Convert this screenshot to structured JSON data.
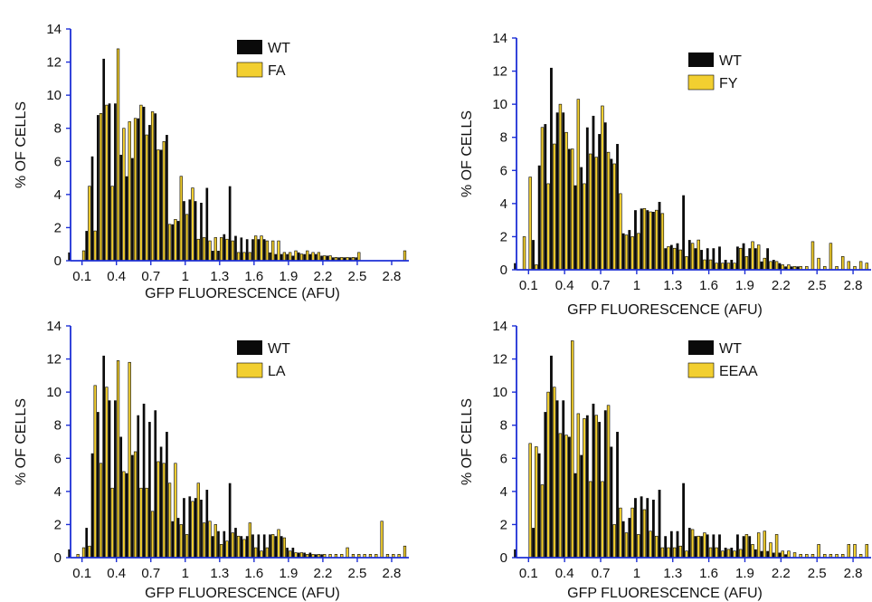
{
  "colors": {
    "wt": "#0a0a0a",
    "mutant": "#f2cf30",
    "axis": "#1d2fd6"
  },
  "chart_data": [
    {
      "type": "bar",
      "xlabel": "GFP FLUORESCENCE (AFU)",
      "ylabel": "% OF CELLS",
      "xlim": [
        0,
        2.95
      ],
      "ylim": [
        0,
        14
      ],
      "xticks": [
        "0.1",
        "0.4",
        "0.7",
        "1",
        "1.3",
        "1.6",
        "1.9",
        "2.2",
        "2.5",
        "2.8"
      ],
      "xtick_values": [
        0.1,
        0.4,
        0.7,
        1.0,
        1.3,
        1.6,
        1.9,
        2.2,
        2.5,
        2.8
      ],
      "yticks": [
        0,
        2,
        4,
        6,
        8,
        10,
        12,
        14
      ],
      "bin_width": 0.05,
      "legend_position": "top-right",
      "series": [
        {
          "name": "WT",
          "color": "#0a0a0a",
          "x": [
            0.0,
            0.15,
            0.2,
            0.25,
            0.3,
            0.35,
            0.4,
            0.45,
            0.5,
            0.55,
            0.6,
            0.65,
            0.7,
            0.75,
            0.8,
            0.85,
            0.9,
            0.95,
            1.0,
            1.05,
            1.1,
            1.15,
            1.2,
            1.25,
            1.3,
            1.35,
            1.4,
            1.45,
            1.5,
            1.55,
            1.6,
            1.65,
            1.7,
            1.75,
            1.8,
            1.85,
            1.9,
            1.95,
            2.0,
            2.05,
            2.1,
            2.15,
            2.2,
            2.25,
            2.3,
            2.35,
            2.4,
            2.45,
            2.5
          ],
          "values": [
            0.5,
            1.8,
            6.3,
            8.8,
            12.2,
            9.5,
            9.5,
            6.4,
            5.1,
            6.2,
            8.6,
            9.3,
            8.2,
            8.9,
            6.7,
            7.6,
            2.2,
            2.4,
            3.6,
            3.7,
            3.6,
            3.5,
            4.4,
            0.6,
            0.6,
            1.6,
            4.5,
            1.5,
            1.4,
            1.3,
            1.3,
            1.3,
            1.3,
            0.5,
            0.4,
            0.4,
            0.4,
            0.3,
            0.5,
            0.4,
            0.4,
            0.4,
            0.3,
            0.3,
            0.2,
            0.2,
            0.2,
            0.2,
            0.2
          ]
        },
        {
          "name": "FA",
          "color": "#f2cf30",
          "x": [
            0.1,
            0.15,
            0.2,
            0.25,
            0.3,
            0.35,
            0.4,
            0.45,
            0.5,
            0.55,
            0.6,
            0.65,
            0.7,
            0.75,
            0.8,
            0.85,
            0.9,
            0.95,
            1.0,
            1.05,
            1.1,
            1.15,
            1.2,
            1.25,
            1.3,
            1.35,
            1.4,
            1.45,
            1.5,
            1.55,
            1.6,
            1.65,
            1.7,
            1.75,
            1.8,
            1.85,
            1.9,
            1.95,
            2.0,
            2.05,
            2.1,
            2.15,
            2.2,
            2.25,
            2.3,
            2.35,
            2.4,
            2.45,
            2.5,
            2.9
          ],
          "values": [
            0.6,
            4.5,
            1.8,
            8.9,
            9.4,
            4.5,
            12.8,
            8.0,
            8.4,
            8.6,
            9.4,
            7.6,
            9.0,
            6.7,
            7.2,
            2.2,
            2.5,
            5.1,
            2.8,
            4.4,
            1.3,
            1.4,
            1.2,
            1.4,
            1.4,
            1.3,
            1.2,
            0.5,
            0.5,
            0.5,
            1.5,
            1.5,
            1.2,
            1.2,
            1.2,
            0.5,
            0.5,
            0.6,
            0.4,
            0.6,
            0.5,
            0.5,
            0.3,
            0.3,
            0.2,
            0.2,
            0.2,
            0.2,
            0.5,
            0.6
          ]
        }
      ]
    },
    {
      "type": "bar",
      "xlabel": "GFP FLUORESCENCE (AFU)",
      "ylabel": "% OF CELLS",
      "xlim": [
        0,
        2.95
      ],
      "ylim": [
        0,
        14
      ],
      "xticks": [
        "0.1",
        "0.4",
        "0.7",
        "1",
        "1.3",
        "1.6",
        "1.9",
        "2.2",
        "2.5",
        "2.8"
      ],
      "xtick_values": [
        0.1,
        0.4,
        0.7,
        1.0,
        1.3,
        1.6,
        1.9,
        2.2,
        2.5,
        2.8
      ],
      "yticks": [
        0,
        2,
        4,
        6,
        8,
        10,
        12,
        14
      ],
      "bin_width": 0.05,
      "legend_position": "top-right",
      "series": [
        {
          "name": "WT",
          "color": "#0a0a0a",
          "x": [
            0.0,
            0.15,
            0.2,
            0.25,
            0.3,
            0.35,
            0.4,
            0.45,
            0.5,
            0.55,
            0.6,
            0.65,
            0.7,
            0.75,
            0.8,
            0.85,
            0.9,
            0.95,
            1.0,
            1.05,
            1.1,
            1.15,
            1.2,
            1.25,
            1.3,
            1.35,
            1.4,
            1.45,
            1.5,
            1.55,
            1.6,
            1.65,
            1.7,
            1.75,
            1.8,
            1.85,
            1.9,
            1.95,
            2.0,
            2.05,
            2.1,
            2.15,
            2.2,
            2.25,
            2.3,
            2.35
          ],
          "values": [
            0.4,
            1.8,
            6.3,
            8.8,
            12.2,
            9.5,
            9.5,
            7.3,
            5.1,
            6.2,
            8.6,
            9.3,
            8.2,
            8.9,
            6.7,
            7.6,
            2.2,
            2.4,
            3.6,
            3.7,
            3.6,
            3.5,
            4.1,
            1.3,
            1.5,
            1.6,
            4.5,
            1.8,
            1.3,
            1.2,
            1.3,
            1.3,
            1.4,
            0.6,
            0.6,
            1.4,
            1.6,
            1.3,
            1.3,
            0.5,
            1.3,
            0.6,
            0.4,
            0.2,
            0.2,
            0.2
          ]
        },
        {
          "name": "FY",
          "color": "#f2cf30",
          "x": [
            0.05,
            0.1,
            0.15,
            0.2,
            0.25,
            0.3,
            0.35,
            0.4,
            0.45,
            0.5,
            0.55,
            0.6,
            0.65,
            0.7,
            0.75,
            0.8,
            0.85,
            0.9,
            0.95,
            1.0,
            1.05,
            1.1,
            1.15,
            1.2,
            1.25,
            1.3,
            1.35,
            1.4,
            1.45,
            1.5,
            1.55,
            1.6,
            1.65,
            1.7,
            1.75,
            1.8,
            1.85,
            1.9,
            1.95,
            2.0,
            2.05,
            2.1,
            2.15,
            2.2,
            2.25,
            2.3,
            2.35,
            2.4,
            2.45,
            2.5,
            2.55,
            2.6,
            2.65,
            2.7,
            2.75,
            2.8,
            2.85,
            2.9
          ],
          "values": [
            2.0,
            5.6,
            0.3,
            8.6,
            5.2,
            7.6,
            10.0,
            8.3,
            7.3,
            10.3,
            5.2,
            7.0,
            6.8,
            9.9,
            7.1,
            6.4,
            4.6,
            2.1,
            2.0,
            2.2,
            3.7,
            3.5,
            3.6,
            3.4,
            1.4,
            1.3,
            1.2,
            0.8,
            1.6,
            1.8,
            0.6,
            0.6,
            0.4,
            0.4,
            0.4,
            0.4,
            1.3,
            0.8,
            1.7,
            1.5,
            0.7,
            0.5,
            0.5,
            0.3,
            0.3,
            0.2,
            0.2,
            0.2,
            1.7,
            0.7,
            0.2,
            1.6,
            0.2,
            0.8,
            0.5,
            0.2,
            0.5,
            0.4
          ]
        }
      ]
    },
    {
      "type": "bar",
      "xlabel": "GFP FLUORESCENCE (AFU)",
      "ylabel": "% OF CELLS",
      "xlim": [
        0,
        2.95
      ],
      "ylim": [
        0,
        14
      ],
      "xticks": [
        "0.1",
        "0.4",
        "0.7",
        "1",
        "1.3",
        "1.6",
        "1.9",
        "2.2",
        "2.5",
        "2.8"
      ],
      "xtick_values": [
        0.1,
        0.4,
        0.7,
        1.0,
        1.3,
        1.6,
        1.9,
        2.2,
        2.5,
        2.8
      ],
      "yticks": [
        0,
        2,
        4,
        6,
        8,
        10,
        12,
        14
      ],
      "bin_width": 0.05,
      "legend_position": "top-right",
      "series": [
        {
          "name": "WT",
          "color": "#0a0a0a",
          "x": [
            0.0,
            0.15,
            0.2,
            0.25,
            0.3,
            0.35,
            0.4,
            0.45,
            0.5,
            0.55,
            0.6,
            0.65,
            0.7,
            0.75,
            0.8,
            0.85,
            0.9,
            0.95,
            1.0,
            1.05,
            1.1,
            1.15,
            1.2,
            1.25,
            1.3,
            1.35,
            1.4,
            1.45,
            1.5,
            1.55,
            1.6,
            1.65,
            1.7,
            1.75,
            1.8,
            1.85,
            1.9,
            1.95,
            2.0,
            2.05,
            2.1,
            2.15,
            2.2
          ],
          "values": [
            0.5,
            1.8,
            6.3,
            8.8,
            12.2,
            9.5,
            9.5,
            7.3,
            5.1,
            6.2,
            8.6,
            9.3,
            8.2,
            8.9,
            6.7,
            7.6,
            2.2,
            2.4,
            3.6,
            3.7,
            3.6,
            3.5,
            4.1,
            1.3,
            1.6,
            1.6,
            4.5,
            1.8,
            1.3,
            1.3,
            1.4,
            1.4,
            1.4,
            1.4,
            1.3,
            1.3,
            0.6,
            0.6,
            0.3,
            0.3,
            0.3,
            0.2,
            0.2
          ]
        },
        {
          "name": "LA",
          "color": "#f2cf30",
          "x": [
            0.05,
            0.1,
            0.15,
            0.2,
            0.25,
            0.3,
            0.35,
            0.4,
            0.45,
            0.5,
            0.55,
            0.6,
            0.65,
            0.7,
            0.75,
            0.8,
            0.85,
            0.9,
            0.95,
            1.0,
            1.05,
            1.1,
            1.15,
            1.2,
            1.25,
            1.3,
            1.35,
            1.4,
            1.45,
            1.5,
            1.55,
            1.6,
            1.65,
            1.7,
            1.75,
            1.8,
            1.85,
            1.9,
            1.95,
            2.0,
            2.05,
            2.1,
            2.15,
            2.2,
            2.25,
            2.3,
            2.35,
            2.4,
            2.45,
            2.5,
            2.55,
            2.6,
            2.65,
            2.7,
            2.75,
            2.8,
            2.85,
            2.9
          ],
          "values": [
            0.2,
            0.6,
            0.7,
            10.4,
            5.7,
            10.3,
            4.2,
            11.9,
            5.2,
            11.8,
            6.4,
            4.2,
            4.2,
            2.8,
            5.8,
            5.7,
            4.5,
            5.7,
            2.0,
            1.4,
            3.4,
            4.5,
            2.1,
            2.2,
            2.0,
            0.8,
            1.0,
            1.5,
            1.3,
            1.1,
            2.1,
            0.6,
            0.4,
            0.6,
            1.4,
            1.7,
            1.2,
            0.4,
            0.3,
            0.3,
            0.2,
            0.2,
            0.2,
            0.2,
            0.2,
            0.2,
            0.2,
            0.6,
            0.2,
            0.2,
            0.2,
            0.2,
            0.2,
            2.2,
            0.2,
            0.2,
            0.2,
            0.7
          ]
        }
      ]
    },
    {
      "type": "bar",
      "xlabel": "GFP FLUORESCENCE (AFU)",
      "ylabel": "% OF CELLS",
      "xlim": [
        0,
        2.95
      ],
      "ylim": [
        0,
        14
      ],
      "xticks": [
        "0.1",
        "0.4",
        "0.7",
        "1",
        "1.3",
        "1.6",
        "1.9",
        "2.2",
        "2.5",
        "2.8"
      ],
      "xtick_values": [
        0.1,
        0.4,
        0.7,
        1.0,
        1.3,
        1.6,
        1.9,
        2.2,
        2.5,
        2.8
      ],
      "yticks": [
        0,
        2,
        4,
        6,
        8,
        10,
        12,
        14
      ],
      "bin_width": 0.05,
      "legend_position": "top-right",
      "series": [
        {
          "name": "WT",
          "color": "#0a0a0a",
          "x": [
            0.0,
            0.15,
            0.2,
            0.25,
            0.3,
            0.35,
            0.4,
            0.45,
            0.5,
            0.55,
            0.6,
            0.65,
            0.7,
            0.75,
            0.8,
            0.85,
            0.9,
            0.95,
            1.0,
            1.05,
            1.1,
            1.15,
            1.2,
            1.25,
            1.3,
            1.35,
            1.4,
            1.45,
            1.5,
            1.55,
            1.6,
            1.65,
            1.7,
            1.75,
            1.8,
            1.85,
            1.9,
            1.95,
            2.0,
            2.05,
            2.1,
            2.15,
            2.2,
            2.25
          ],
          "values": [
            0.5,
            1.8,
            6.3,
            8.8,
            12.2,
            9.5,
            9.5,
            7.3,
            5.1,
            6.2,
            8.6,
            9.3,
            8.2,
            8.9,
            6.7,
            7.6,
            2.2,
            2.4,
            3.6,
            3.7,
            3.6,
            3.5,
            4.1,
            1.3,
            1.6,
            1.6,
            4.5,
            1.8,
            1.3,
            1.3,
            1.4,
            1.4,
            1.4,
            0.6,
            0.6,
            1.4,
            1.3,
            1.3,
            0.5,
            0.4,
            0.4,
            0.3,
            0.3,
            0.2
          ]
        },
        {
          "name": "EEAA",
          "color": "#f2cf30",
          "x": [
            0.1,
            0.15,
            0.2,
            0.25,
            0.3,
            0.35,
            0.4,
            0.45,
            0.5,
            0.55,
            0.6,
            0.65,
            0.7,
            0.75,
            0.8,
            0.85,
            0.9,
            0.95,
            1.0,
            1.05,
            1.1,
            1.15,
            1.2,
            1.25,
            1.3,
            1.35,
            1.4,
            1.45,
            1.5,
            1.55,
            1.6,
            1.65,
            1.7,
            1.75,
            1.8,
            1.85,
            1.9,
            1.95,
            2.0,
            2.05,
            2.1,
            2.15,
            2.2,
            2.25,
            2.3,
            2.35,
            2.4,
            2.45,
            2.5,
            2.55,
            2.6,
            2.65,
            2.7,
            2.75,
            2.8,
            2.85,
            2.9
          ],
          "values": [
            6.9,
            6.7,
            4.4,
            10.0,
            10.3,
            7.5,
            7.4,
            13.1,
            8.7,
            8.4,
            4.6,
            8.6,
            4.6,
            9.2,
            2.0,
            3.0,
            1.5,
            3.0,
            1.4,
            2.9,
            1.6,
            1.3,
            0.6,
            0.6,
            0.6,
            0.7,
            0.4,
            1.7,
            1.3,
            1.5,
            0.6,
            0.6,
            0.4,
            0.5,
            0.4,
            0.5,
            1.4,
            0.8,
            1.5,
            1.6,
            0.9,
            1.4,
            0.4,
            0.4,
            0.3,
            0.2,
            0.2,
            0.2,
            0.8,
            0.2,
            0.2,
            0.2,
            0.2,
            0.8,
            0.8,
            0.2,
            0.8
          ]
        }
      ]
    }
  ]
}
